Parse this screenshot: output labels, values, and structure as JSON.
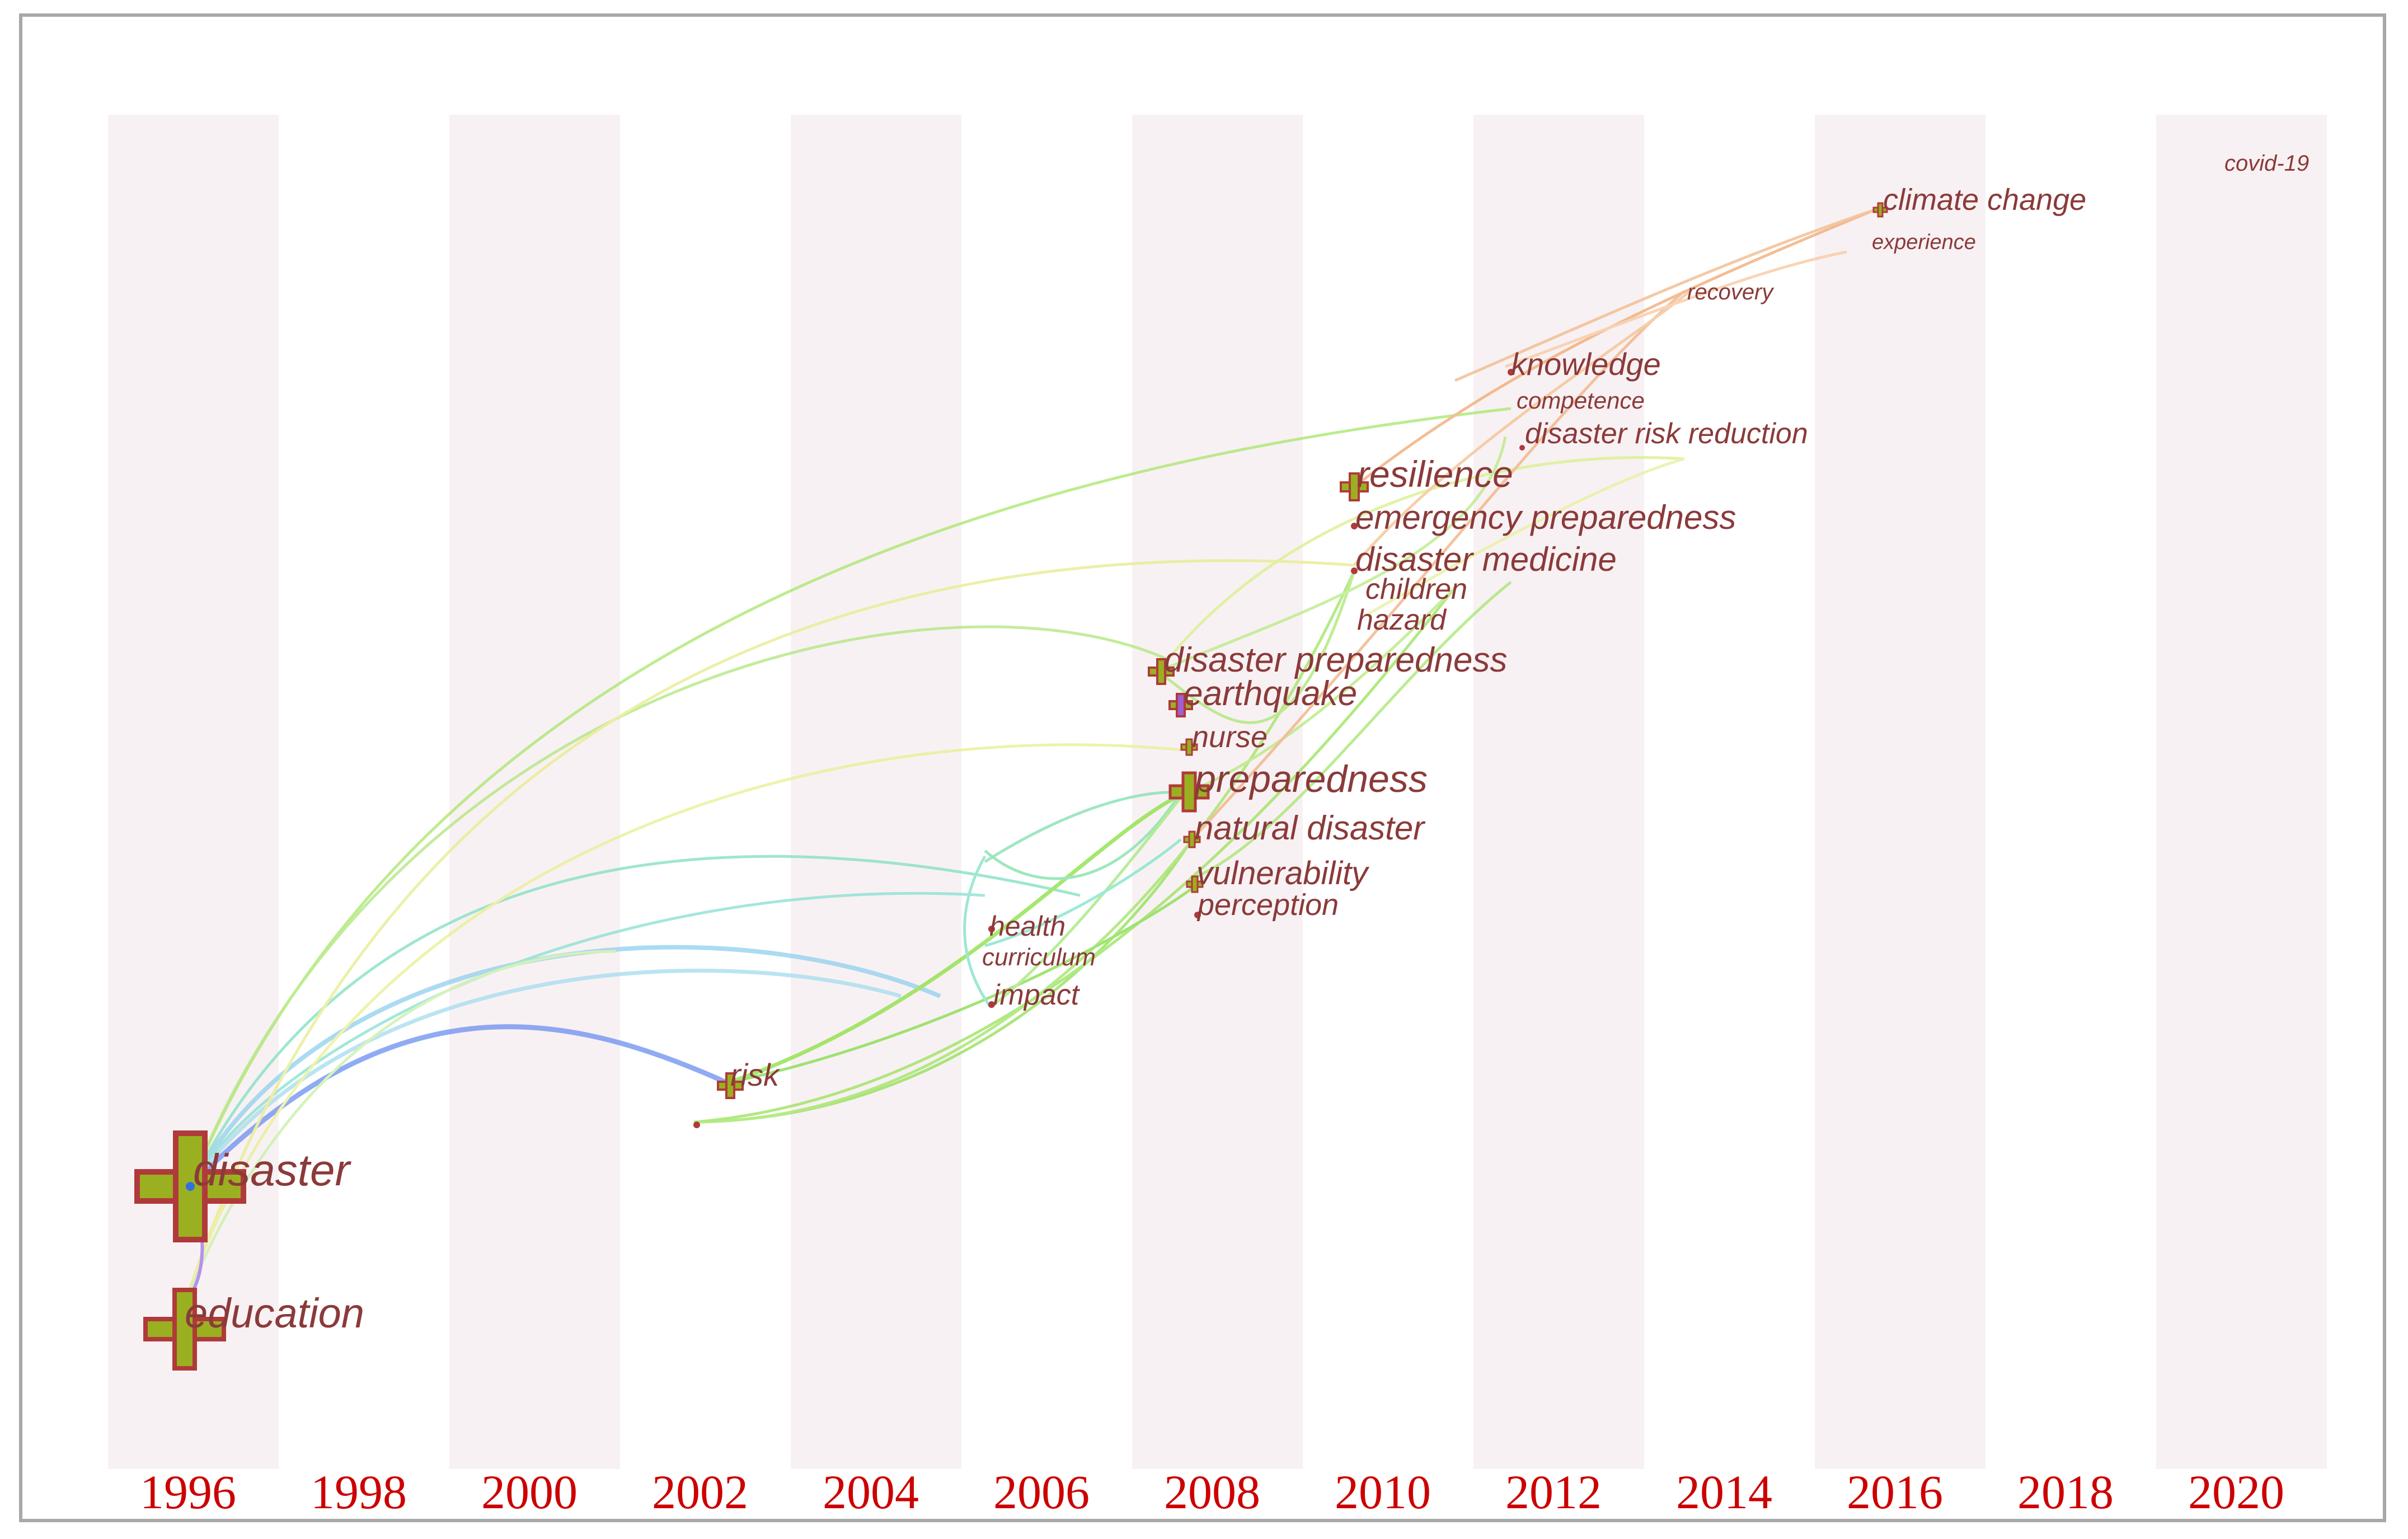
{
  "diagram": {
    "type": "keyword co-occurrence timezone map",
    "years": [
      "1996",
      "1998",
      "2000",
      "2002",
      "2004",
      "2006",
      "2008",
      "2010",
      "2012",
      "2014",
      "2016",
      "2018",
      "2020"
    ],
    "colors": {
      "band": "#f8f1f3",
      "keyword_text": "#8b3a3a",
      "year_text": "#cc0000",
      "node_outer": "#b03a3a",
      "node_inner": "#9ab020"
    },
    "keywords": [
      {
        "id": "disaster",
        "label": "disaster"
      },
      {
        "id": "education",
        "label": "education"
      },
      {
        "id": "risk",
        "label": "risk"
      },
      {
        "id": "health",
        "label": "health"
      },
      {
        "id": "curriculum",
        "label": "curriculum"
      },
      {
        "id": "impact",
        "label": "impact"
      },
      {
        "id": "disaster-preparedness",
        "label": "disaster preparedness"
      },
      {
        "id": "earthquake",
        "label": "earthquake"
      },
      {
        "id": "nurse",
        "label": "nurse"
      },
      {
        "id": "preparedness",
        "label": "preparedness"
      },
      {
        "id": "natural-disaster",
        "label": "natural disaster"
      },
      {
        "id": "vulnerability",
        "label": "vulnerability"
      },
      {
        "id": "perception",
        "label": "perception"
      },
      {
        "id": "resilience",
        "label": "resilience"
      },
      {
        "id": "emergency-preparedness",
        "label": "emergency preparedness"
      },
      {
        "id": "disaster-medicine",
        "label": "disaster medicine"
      },
      {
        "id": "children",
        "label": "children"
      },
      {
        "id": "hazard",
        "label": "hazard"
      },
      {
        "id": "knowledge",
        "label": "knowledge"
      },
      {
        "id": "competence",
        "label": "competence"
      },
      {
        "id": "disaster-risk-reduction",
        "label": "disaster risk reduction"
      },
      {
        "id": "climate-change",
        "label": "climate change"
      },
      {
        "id": "experience",
        "label": "experience"
      },
      {
        "id": "recovery",
        "label": "recovery"
      },
      {
        "id": "covid-19",
        "label": "covid-19"
      }
    ]
  }
}
